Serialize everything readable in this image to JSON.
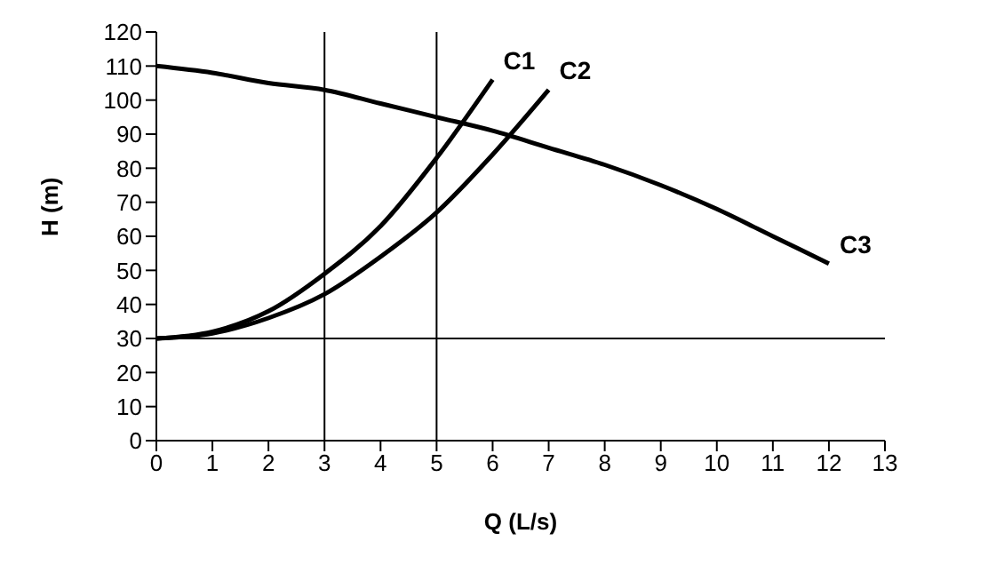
{
  "chart_data": {
    "type": "line",
    "xlabel": "Q (L/s)",
    "ylabel": "H (m)",
    "xlim": [
      0,
      13
    ],
    "ylim": [
      0,
      120
    ],
    "xticks": [
      0,
      1,
      2,
      3,
      4,
      5,
      6,
      7,
      8,
      9,
      10,
      11,
      12,
      13
    ],
    "yticks": [
      0,
      10,
      20,
      30,
      40,
      50,
      60,
      70,
      80,
      90,
      100,
      110,
      120
    ],
    "marker": "none",
    "line_style": "solid",
    "grid": false,
    "legend": false,
    "series": [
      {
        "name": "C1",
        "color": "#000000",
        "x": [
          0,
          1,
          2,
          3,
          4,
          5,
          6
        ],
        "values": [
          30,
          32,
          38,
          49,
          63,
          83,
          106
        ]
      },
      {
        "name": "C2",
        "color": "#000000",
        "x": [
          0,
          1,
          2,
          3,
          4,
          5,
          6,
          7
        ],
        "values": [
          30,
          31.5,
          36,
          43,
          54,
          67,
          84,
          103
        ]
      },
      {
        "name": "C3",
        "color": "#000000",
        "x": [
          0,
          1,
          2,
          3,
          4,
          5,
          6,
          7,
          8,
          9,
          10,
          11,
          12
        ],
        "values": [
          110,
          108,
          105,
          103,
          99,
          95,
          91,
          86,
          81,
          75,
          68,
          60,
          52
        ]
      }
    ],
    "ref_lines": [
      {
        "axis": "x",
        "value": 3,
        "color": "#000000"
      },
      {
        "axis": "x",
        "value": 5,
        "color": "#000000"
      },
      {
        "axis": "y",
        "value": 30,
        "color": "#000000"
      }
    ]
  }
}
